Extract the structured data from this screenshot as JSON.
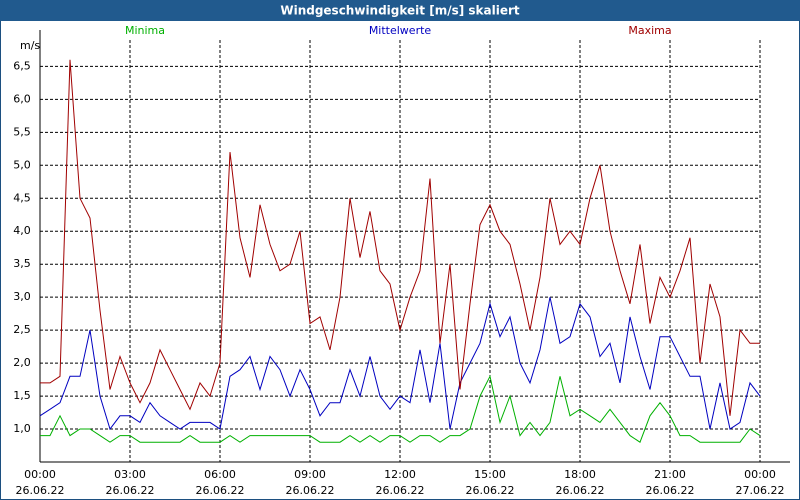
{
  "chart_data": {
    "type": "line",
    "title": "Windgeschwindigkeit [m/s] skaliert",
    "y_label": "m/s",
    "x": [
      0,
      20,
      40,
      60,
      80,
      100,
      120,
      140,
      160,
      180,
      200,
      220,
      240,
      260,
      280,
      300,
      320,
      340,
      360,
      380,
      400,
      420,
      440,
      460,
      480,
      500,
      520,
      540,
      560,
      580,
      600,
      620,
      640,
      660,
      680,
      700,
      720,
      740,
      760,
      780,
      800,
      820,
      840,
      860,
      880,
      900,
      920,
      940,
      960,
      980,
      1000,
      1020,
      1040,
      1060,
      1080,
      1100,
      1120,
      1140,
      1160,
      1180,
      1200,
      1220,
      1240,
      1260,
      1280,
      1300,
      1320,
      1340,
      1360,
      1380,
      1400,
      1420,
      1440
    ],
    "series": [
      {
        "name": "Minima",
        "color": "#00b000",
        "values": [
          0.9,
          0.9,
          1.2,
          0.9,
          1.0,
          1.0,
          0.9,
          0.8,
          0.9,
          0.9,
          0.8,
          0.8,
          0.8,
          0.8,
          0.8,
          0.9,
          0.8,
          0.8,
          0.8,
          0.9,
          0.8,
          0.9,
          0.9,
          0.9,
          0.9,
          0.9,
          0.9,
          0.9,
          0.8,
          0.8,
          0.8,
          0.9,
          0.8,
          0.9,
          0.8,
          0.9,
          0.9,
          0.8,
          0.9,
          0.9,
          0.8,
          0.9,
          0.9,
          1.0,
          1.5,
          1.8,
          1.1,
          1.5,
          0.9,
          1.1,
          0.9,
          1.1,
          1.8,
          1.2,
          1.3,
          1.2,
          1.1,
          1.3,
          1.1,
          0.9,
          0.8,
          1.2,
          1.4,
          1.2,
          0.9,
          0.9,
          0.8,
          0.8,
          0.8,
          0.8,
          0.8,
          1.0,
          0.9
        ]
      },
      {
        "name": "Mittelwerte",
        "color": "#0000c0",
        "values": [
          1.2,
          1.3,
          1.4,
          1.8,
          1.8,
          2.5,
          1.5,
          1.0,
          1.2,
          1.2,
          1.1,
          1.4,
          1.2,
          1.1,
          1.0,
          1.1,
          1.1,
          1.1,
          1.0,
          1.8,
          1.9,
          2.1,
          1.6,
          2.1,
          1.9,
          1.5,
          1.9,
          1.6,
          1.2,
          1.4,
          1.4,
          1.9,
          1.5,
          2.1,
          1.5,
          1.3,
          1.5,
          1.4,
          2.2,
          1.4,
          2.3,
          1.0,
          1.7,
          2.0,
          2.3,
          2.9,
          2.4,
          2.7,
          2.0,
          1.7,
          2.2,
          3.0,
          2.3,
          2.4,
          2.9,
          2.7,
          2.1,
          2.3,
          1.7,
          2.7,
          2.1,
          1.6,
          2.4,
          2.4,
          2.1,
          1.8,
          1.8,
          1.0,
          1.7,
          1.0,
          1.1,
          1.7,
          1.5
        ]
      },
      {
        "name": "Maxima",
        "color": "#a00000",
        "values": [
          1.7,
          1.7,
          1.8,
          6.6,
          4.5,
          4.2,
          2.8,
          1.6,
          2.1,
          1.7,
          1.4,
          1.7,
          2.2,
          1.9,
          1.6,
          1.3,
          1.7,
          1.5,
          2.0,
          5.2,
          3.9,
          3.3,
          4.4,
          3.8,
          3.4,
          3.5,
          4.0,
          2.6,
          2.7,
          2.2,
          3.0,
          4.5,
          3.6,
          4.3,
          3.4,
          3.2,
          2.5,
          3.0,
          3.4,
          4.8,
          2.3,
          3.5,
          1.6,
          2.9,
          4.1,
          4.4,
          4.0,
          3.8,
          3.2,
          2.5,
          3.3,
          4.5,
          3.8,
          4.0,
          3.8,
          4.5,
          5.0,
          4.0,
          3.4,
          2.9,
          3.8,
          2.6,
          3.3,
          3.0,
          3.4,
          3.9,
          2.0,
          3.2,
          2.7,
          1.2,
          2.5,
          2.3,
          2.3
        ]
      }
    ],
    "xlim": [
      0,
      1440
    ],
    "xticks": [
      {
        "value": 0,
        "label": "00:00"
      },
      {
        "value": 180,
        "label": "03:00"
      },
      {
        "value": 360,
        "label": "06:00"
      },
      {
        "value": 540,
        "label": "09:00"
      },
      {
        "value": 720,
        "label": "12:00"
      },
      {
        "value": 900,
        "label": "15:00"
      },
      {
        "value": 1080,
        "label": "18:00"
      },
      {
        "value": 1260,
        "label": "21:00"
      },
      {
        "value": 1440,
        "label": "00:00"
      }
    ],
    "xtick_dates": [
      "26.06.22",
      "26.06.22",
      "26.06.22",
      "26.06.22",
      "26.06.22",
      "26.06.22",
      "26.06.22",
      "26.06.22",
      "27.06.22"
    ],
    "ylim": [
      0.5,
      6.9
    ],
    "yticks": [
      {
        "value": 1.0,
        "label": "1,0"
      },
      {
        "value": 1.5,
        "label": "1,5"
      },
      {
        "value": 2.0,
        "label": "2,0"
      },
      {
        "value": 2.5,
        "label": "2,5"
      },
      {
        "value": 3.0,
        "label": "3,0"
      },
      {
        "value": 3.5,
        "label": "3,5"
      },
      {
        "value": 4.0,
        "label": "4,0"
      },
      {
        "value": 4.5,
        "label": "4,5"
      },
      {
        "value": 5.0,
        "label": "5,0"
      },
      {
        "value": 5.5,
        "label": "5,5"
      },
      {
        "value": 6.0,
        "label": "6,0"
      },
      {
        "value": 6.5,
        "label": "6,5"
      }
    ],
    "grid": true
  }
}
